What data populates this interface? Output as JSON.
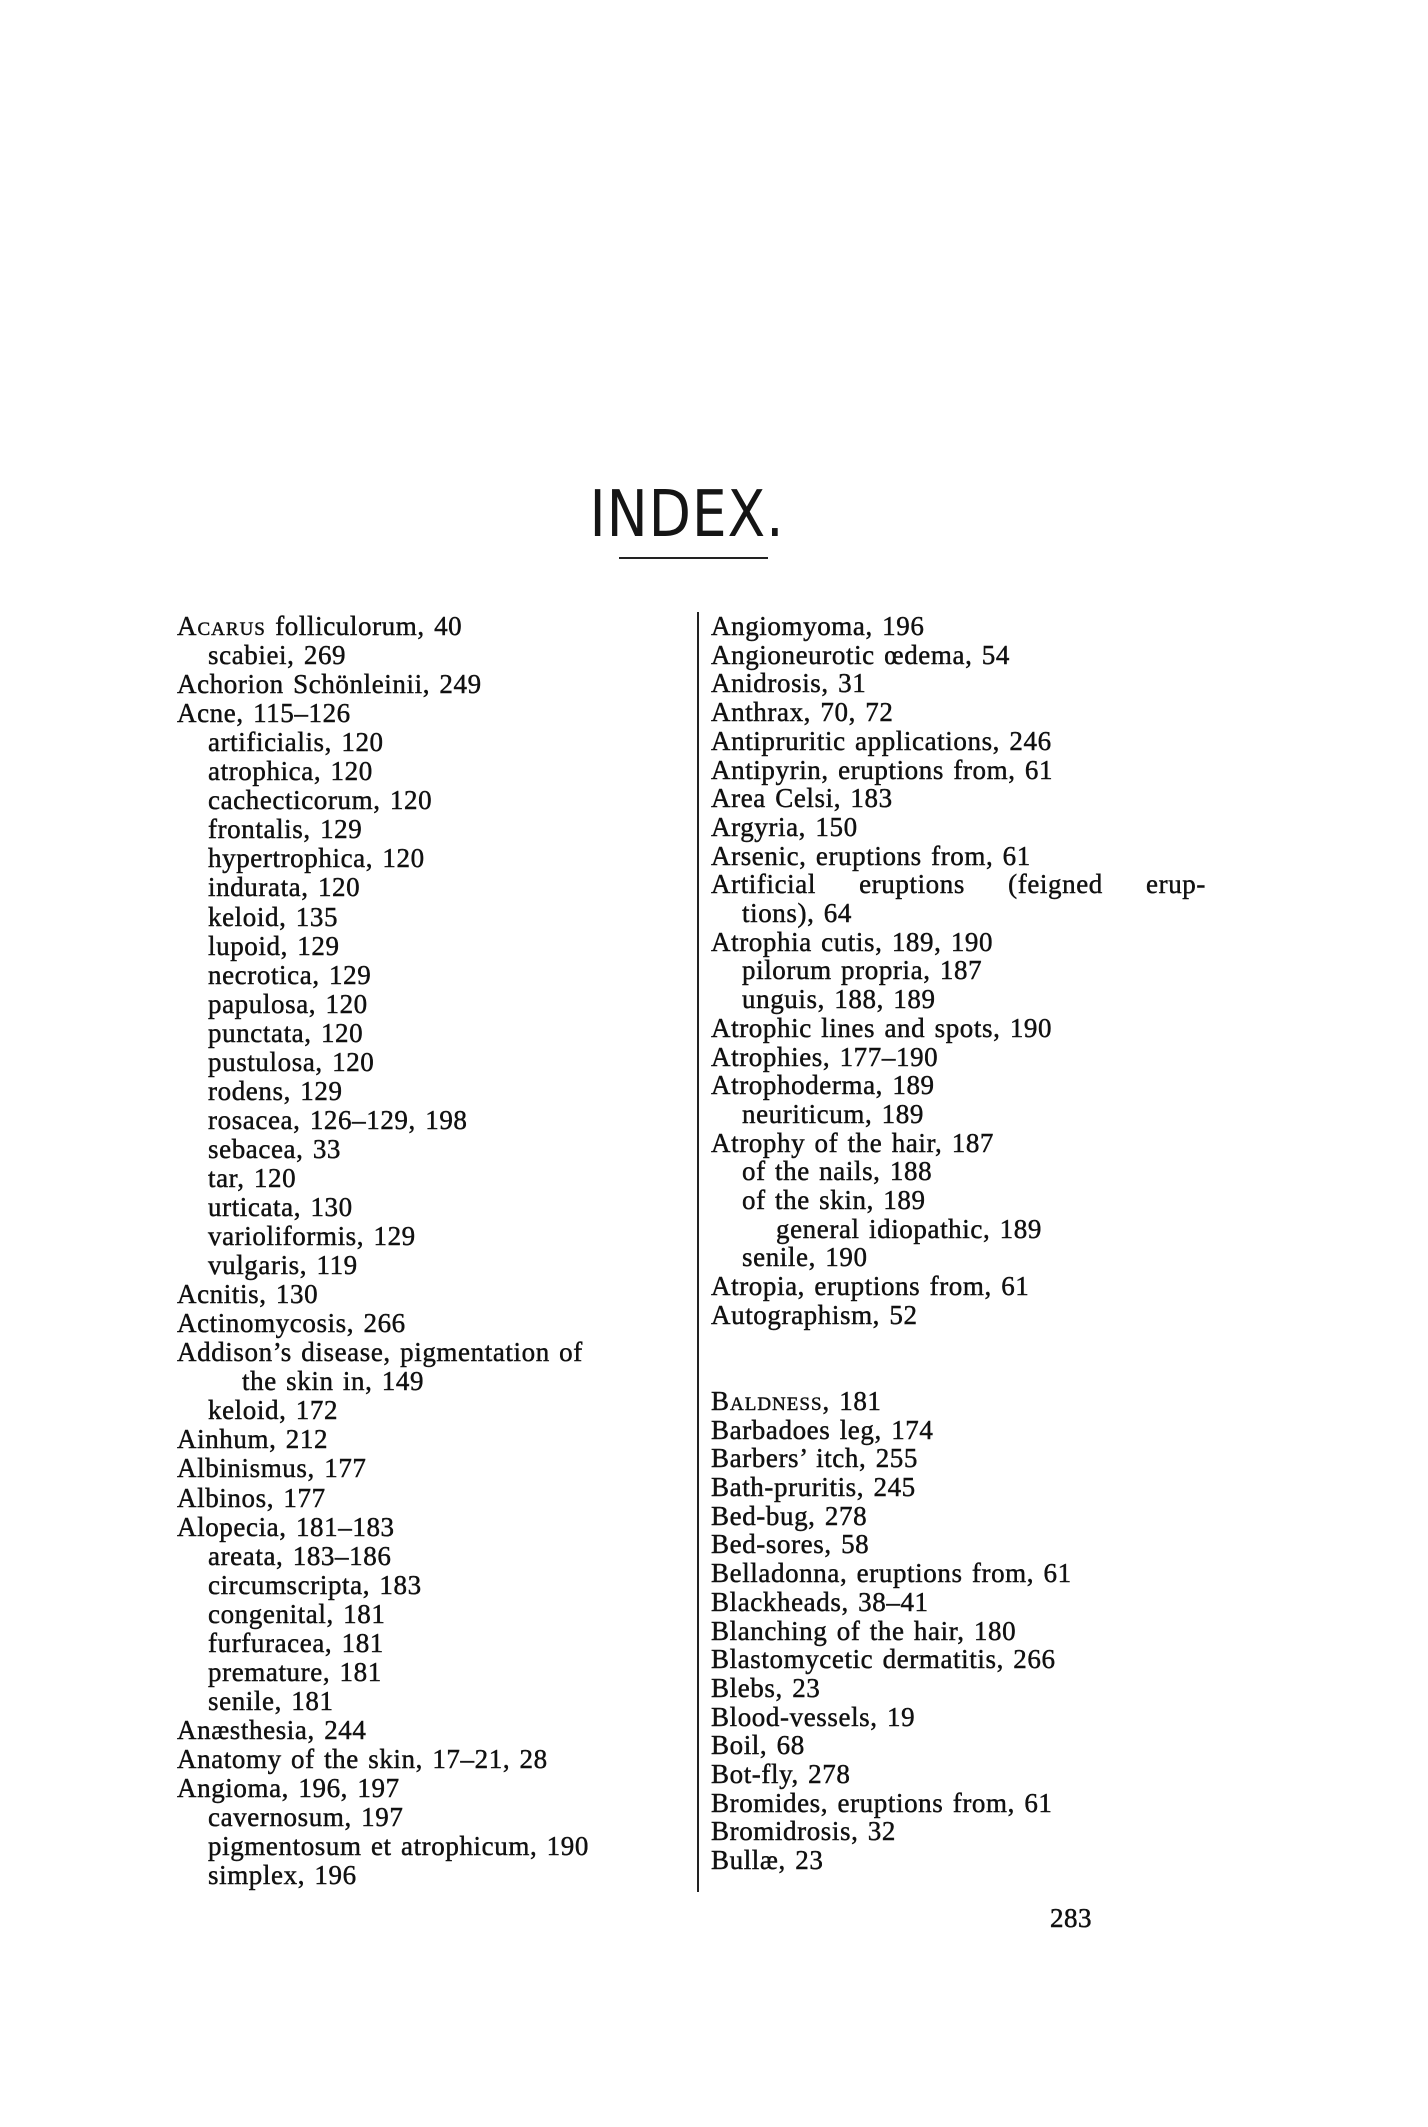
{
  "title": "INDEX.",
  "page_number": "283",
  "left_column": [
    {
      "lead": "Acarus",
      "text": " folliculorum, 40",
      "level": 0
    },
    {
      "text": "scabiei, 269",
      "level": 1
    },
    {
      "text": "Achorion Schönleinii, 249",
      "level": 0
    },
    {
      "text": "Acne, 115–126",
      "level": 0
    },
    {
      "text": "artificialis, 120",
      "level": 1
    },
    {
      "text": "atrophica, 120",
      "level": 1
    },
    {
      "text": "cachecticorum, 120",
      "level": 1
    },
    {
      "text": "frontalis, 129",
      "level": 1
    },
    {
      "text": "hypertrophica, 120",
      "level": 1
    },
    {
      "text": "indurata, 120",
      "level": 1
    },
    {
      "text": "keloid, 135",
      "level": 1
    },
    {
      "text": "lupoid, 129",
      "level": 1
    },
    {
      "text": "necrotica, 129",
      "level": 1
    },
    {
      "text": "papulosa, 120",
      "level": 1
    },
    {
      "text": "punctata, 120",
      "level": 1
    },
    {
      "text": "pustulosa, 120",
      "level": 1
    },
    {
      "text": "rodens, 129",
      "level": 1
    },
    {
      "text": "rosacea, 126–129, 198",
      "level": 1
    },
    {
      "text": "sebacea, 33",
      "level": 1
    },
    {
      "text": "tar, 120",
      "level": 1
    },
    {
      "text": "urticata, 130",
      "level": 1
    },
    {
      "text": "varioliformis, 129",
      "level": 1
    },
    {
      "text": "vulgaris, 119",
      "level": 1
    },
    {
      "text": "Acnitis, 130",
      "level": 0
    },
    {
      "text": "Actinomycosis, 266",
      "level": 0
    },
    {
      "text": "Addison’s disease, pigmentation of",
      "level": 0
    },
    {
      "text": "the skin in, 149",
      "level": 2
    },
    {
      "text": "keloid, 172",
      "level": 1
    },
    {
      "text": "Ainhum, 212",
      "level": 0
    },
    {
      "text": "Albinismus, 177",
      "level": 0
    },
    {
      "text": "Albinos, 177",
      "level": 0
    },
    {
      "text": "Alopecia, 181–183",
      "level": 0
    },
    {
      "text": "areata, 183–186",
      "level": 1
    },
    {
      "text": "circumscripta, 183",
      "level": 1
    },
    {
      "text": "congenital, 181",
      "level": 1
    },
    {
      "text": "furfuracea, 181",
      "level": 1
    },
    {
      "text": "premature, 181",
      "level": 1
    },
    {
      "text": "senile, 181",
      "level": 1
    },
    {
      "text": "Anæsthesia, 244",
      "level": 0
    },
    {
      "text": "Anatomy of the skin, 17–21, 28",
      "level": 0
    },
    {
      "text": "Angioma, 196, 197",
      "level": 0
    },
    {
      "text": "cavernosum, 197",
      "level": 1
    },
    {
      "text": "pigmentosum et atrophicum, 190",
      "level": 1
    },
    {
      "text": "simplex, 196",
      "level": 1
    }
  ],
  "right_column": [
    {
      "text": "Angiomyoma, 196",
      "level": 0
    },
    {
      "text": "Angioneurotic œdema, 54",
      "level": 0
    },
    {
      "text": "Anidrosis, 31",
      "level": 0
    },
    {
      "text": "Anthrax, 70, 72",
      "level": 0
    },
    {
      "text": "Antipruritic applications, 246",
      "level": 0
    },
    {
      "text": "Antipyrin, eruptions from, 61",
      "level": 0
    },
    {
      "text": "Area Celsi, 183",
      "level": 0
    },
    {
      "text": "Argyria, 150",
      "level": 0
    },
    {
      "text": "Arsenic, eruptions from, 61",
      "level": 0
    },
    {
      "text": "Artificial eruptions (feigned erup-",
      "level": 0,
      "justify": true
    },
    {
      "text": "tions), 64",
      "level": 1
    },
    {
      "text": "Atrophia cutis, 189, 190",
      "level": 0
    },
    {
      "text": "pilorum propria, 187",
      "level": 1
    },
    {
      "text": "unguis, 188, 189",
      "level": 1
    },
    {
      "text": "Atrophic lines and spots, 190",
      "level": 0
    },
    {
      "text": "Atrophies, 177–190",
      "level": 0
    },
    {
      "text": "Atrophoderma, 189",
      "level": 0
    },
    {
      "text": "neuriticum, 189",
      "level": 1
    },
    {
      "text": "Atrophy of the hair, 187",
      "level": 0
    },
    {
      "text": "of the nails, 188",
      "level": 1
    },
    {
      "text": "of the skin, 189",
      "level": 1
    },
    {
      "text": "general idiopathic, 189",
      "level": 2
    },
    {
      "text": "senile, 190",
      "level": 1
    },
    {
      "text": "Atropia, eruptions from, 61",
      "level": 0
    },
    {
      "text": "Autographism, 52",
      "level": 0
    },
    {
      "gap": true
    },
    {
      "gap": true
    },
    {
      "lead": "Baldness",
      "text": ", 181",
      "level": 0
    },
    {
      "text": "Barbadoes leg, 174",
      "level": 0
    },
    {
      "text": "Barbers’ itch, 255",
      "level": 0
    },
    {
      "text": "Bath-pruritis, 245",
      "level": 0
    },
    {
      "text": "Bed-bug, 278",
      "level": 0
    },
    {
      "text": "Bed-sores, 58",
      "level": 0
    },
    {
      "text": "Belladonna, eruptions from, 61",
      "level": 0
    },
    {
      "text": "Blackheads, 38–41",
      "level": 0
    },
    {
      "text": "Blanching of the hair, 180",
      "level": 0
    },
    {
      "text": "Blastomycetic dermatitis, 266",
      "level": 0
    },
    {
      "text": "Blebs, 23",
      "level": 0
    },
    {
      "text": "Blood-vessels, 19",
      "level": 0
    },
    {
      "text": "Boil, 68",
      "level": 0
    },
    {
      "text": "Bot-fly, 278",
      "level": 0
    },
    {
      "text": "Bromides, eruptions from, 61",
      "level": 0
    },
    {
      "text": "Bromidrosis, 32",
      "level": 0
    },
    {
      "text": "Bullæ, 23",
      "level": 0
    }
  ]
}
